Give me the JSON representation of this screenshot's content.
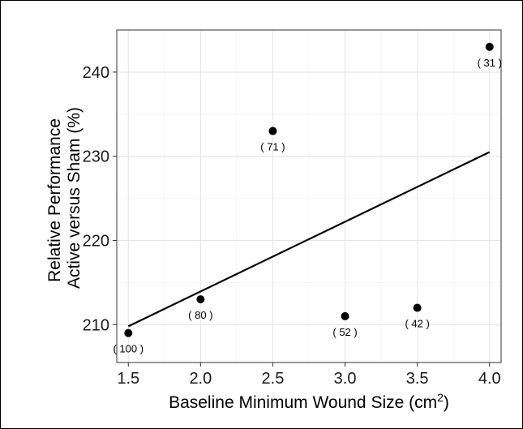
{
  "chart_data": {
    "type": "scatter",
    "title": "",
    "xlabel": "Baseline Minimum Wound Size (cm",
    "xlabel_superscript": "2",
    "xlabel_suffix": ")",
    "ylabel_lines": [
      "Relative Performance",
      "Active versus Sham (%)"
    ],
    "xlim": [
      1.42,
      4.08
    ],
    "ylim": [
      205.5,
      245
    ],
    "x_ticks": [
      1.5,
      2.0,
      2.5,
      3.0,
      3.5,
      4.0
    ],
    "x_tick_labels": [
      "1.5",
      "2.0",
      "2.5",
      "3.0",
      "3.5",
      "4.0"
    ],
    "y_ticks": [
      210,
      220,
      230,
      240
    ],
    "y_tick_labels": [
      "210",
      "220",
      "230",
      "240"
    ],
    "grid": true,
    "legend": "none",
    "points": [
      {
        "x": 1.5,
        "y": 209,
        "label": "( 100 )"
      },
      {
        "x": 2.0,
        "y": 213,
        "label": "( 80 )"
      },
      {
        "x": 2.5,
        "y": 233,
        "label": "( 71 )"
      },
      {
        "x": 3.0,
        "y": 211,
        "label": "( 52 )"
      },
      {
        "x": 3.5,
        "y": 212,
        "label": "( 42 )"
      },
      {
        "x": 4.0,
        "y": 243,
        "label": "( 31 )"
      }
    ],
    "trendline": {
      "x": [
        1.5,
        4.0
      ],
      "y": [
        209.8,
        230.5
      ]
    },
    "colors": {
      "points": "#000000",
      "line": "#000000",
      "grid": "#e6e6e6",
      "panel_border": "#333333"
    }
  }
}
